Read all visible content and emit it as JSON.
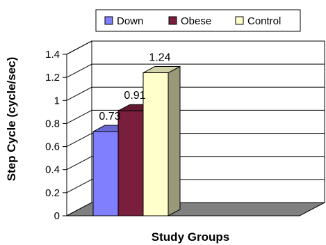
{
  "chart_data": {
    "type": "bar",
    "style": "3d-clustered-column",
    "categories": [
      ""
    ],
    "series": [
      {
        "name": "Down",
        "values": [
          0.73
        ],
        "color": "#8080FF"
      },
      {
        "name": "Obese",
        "values": [
          0.91
        ],
        "color": "#7A1E3E"
      },
      {
        "name": "Control",
        "values": [
          1.24
        ],
        "color": "#FFFFCC"
      }
    ],
    "data_labels": [
      "0.73",
      "0.91",
      "1.24"
    ],
    "xlabel": "Study Groups",
    "ylabel": "Step Cycle (cycle/sec)",
    "ylim": [
      0,
      1.4
    ],
    "yticks": [
      "0",
      "0.2",
      "0.4",
      "0.6",
      "0.8",
      "1",
      "1.2",
      "1.4"
    ],
    "grid": true,
    "legend": "top",
    "colors": {
      "wall": "#ffffff",
      "floor": "#808080",
      "grid": "#000000"
    }
  }
}
